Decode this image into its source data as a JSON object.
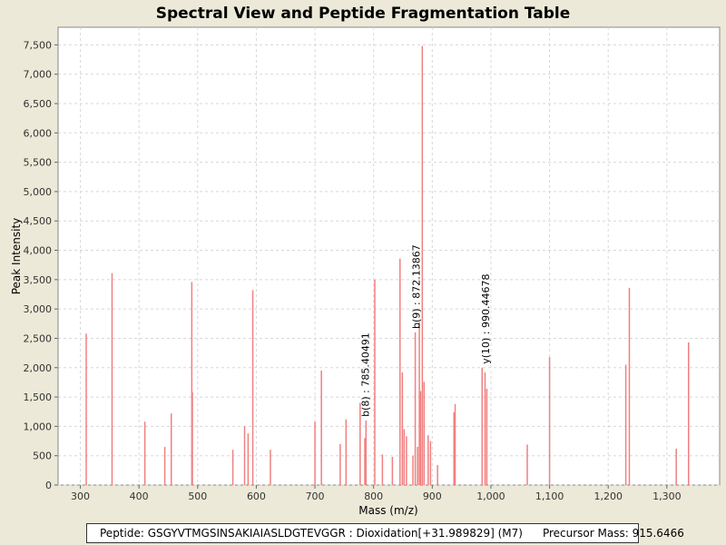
{
  "chart_data": {
    "type": "bar",
    "title": "Spectral View and Peptide Fragmentation Table",
    "xlabel": "Mass (m/z)",
    "ylabel": "Peak Intensity",
    "xlim": [
      262,
      1390
    ],
    "ylim": [
      0,
      7800
    ],
    "x_ticks": [
      "300",
      "400",
      "500",
      "600",
      "700",
      "800",
      "900",
      "1,000",
      "1,100",
      "1,200",
      "1,300"
    ],
    "y_ticks": [
      "0",
      "500",
      "1,000",
      "1,500",
      "2,000",
      "2,500",
      "3,000",
      "3,500",
      "4,000",
      "4,500",
      "5,000",
      "5,500",
      "6,000",
      "6,500",
      "7,000",
      "7,500"
    ],
    "grid": true,
    "bar_color": "#f08080",
    "peaks": [
      {
        "mz": 310,
        "intensity": 2580
      },
      {
        "mz": 354,
        "intensity": 3610
      },
      {
        "mz": 410,
        "intensity": 1080
      },
      {
        "mz": 444,
        "intensity": 650
      },
      {
        "mz": 455,
        "intensity": 1220
      },
      {
        "mz": 490,
        "intensity": 3460
      },
      {
        "mz": 491,
        "intensity": 1580
      },
      {
        "mz": 560,
        "intensity": 600
      },
      {
        "mz": 580,
        "intensity": 1000
      },
      {
        "mz": 586,
        "intensity": 880
      },
      {
        "mz": 594,
        "intensity": 3320
      },
      {
        "mz": 624,
        "intensity": 600
      },
      {
        "mz": 700,
        "intensity": 1080
      },
      {
        "mz": 711,
        "intensity": 1950
      },
      {
        "mz": 743,
        "intensity": 700
      },
      {
        "mz": 753,
        "intensity": 1120
      },
      {
        "mz": 777,
        "intensity": 1400
      },
      {
        "mz": 785,
        "intensity": 800
      },
      {
        "mz": 787,
        "intensity": 1100
      },
      {
        "mz": 802,
        "intensity": 3500
      },
      {
        "mz": 815,
        "intensity": 520
      },
      {
        "mz": 832,
        "intensity": 480
      },
      {
        "mz": 845,
        "intensity": 3860
      },
      {
        "mz": 849,
        "intensity": 1920
      },
      {
        "mz": 852,
        "intensity": 950
      },
      {
        "mz": 856,
        "intensity": 830
      },
      {
        "mz": 867,
        "intensity": 500
      },
      {
        "mz": 871,
        "intensity": 2600
      },
      {
        "mz": 875,
        "intensity": 650
      },
      {
        "mz": 878,
        "intensity": 2780
      },
      {
        "mz": 880,
        "intensity": 1600
      },
      {
        "mz": 883,
        "intensity": 7480
      },
      {
        "mz": 886,
        "intensity": 1760
      },
      {
        "mz": 893,
        "intensity": 850
      },
      {
        "mz": 897,
        "intensity": 750
      },
      {
        "mz": 909,
        "intensity": 340
      },
      {
        "mz": 937,
        "intensity": 1240
      },
      {
        "mz": 939,
        "intensity": 1380
      },
      {
        "mz": 985,
        "intensity": 2000
      },
      {
        "mz": 990,
        "intensity": 1920
      },
      {
        "mz": 993,
        "intensity": 1640
      },
      {
        "mz": 1062,
        "intensity": 690
      },
      {
        "mz": 1100,
        "intensity": 2180
      },
      {
        "mz": 1230,
        "intensity": 2050
      },
      {
        "mz": 1236,
        "intensity": 3360
      },
      {
        "mz": 1316,
        "intensity": 620
      },
      {
        "mz": 1337,
        "intensity": 2430
      }
    ],
    "annotations": [
      {
        "mz": 785.40491,
        "text": "b(8) : 785.40491",
        "peak_intensity": 1100
      },
      {
        "mz": 872.13867,
        "text": "b(9) : 872.13867",
        "peak_intensity": 2600
      },
      {
        "mz": 990.44678,
        "text": "y(10) : 990.44678",
        "peak_intensity": 2000
      }
    ]
  },
  "footer": {
    "peptide": "Peptide: GSGYVTMGSINSAKIAIASLDGTEVGGR : Dioxidation[+31.989829] (M7)",
    "precursor": "Precursor Mass: 915.6466"
  }
}
